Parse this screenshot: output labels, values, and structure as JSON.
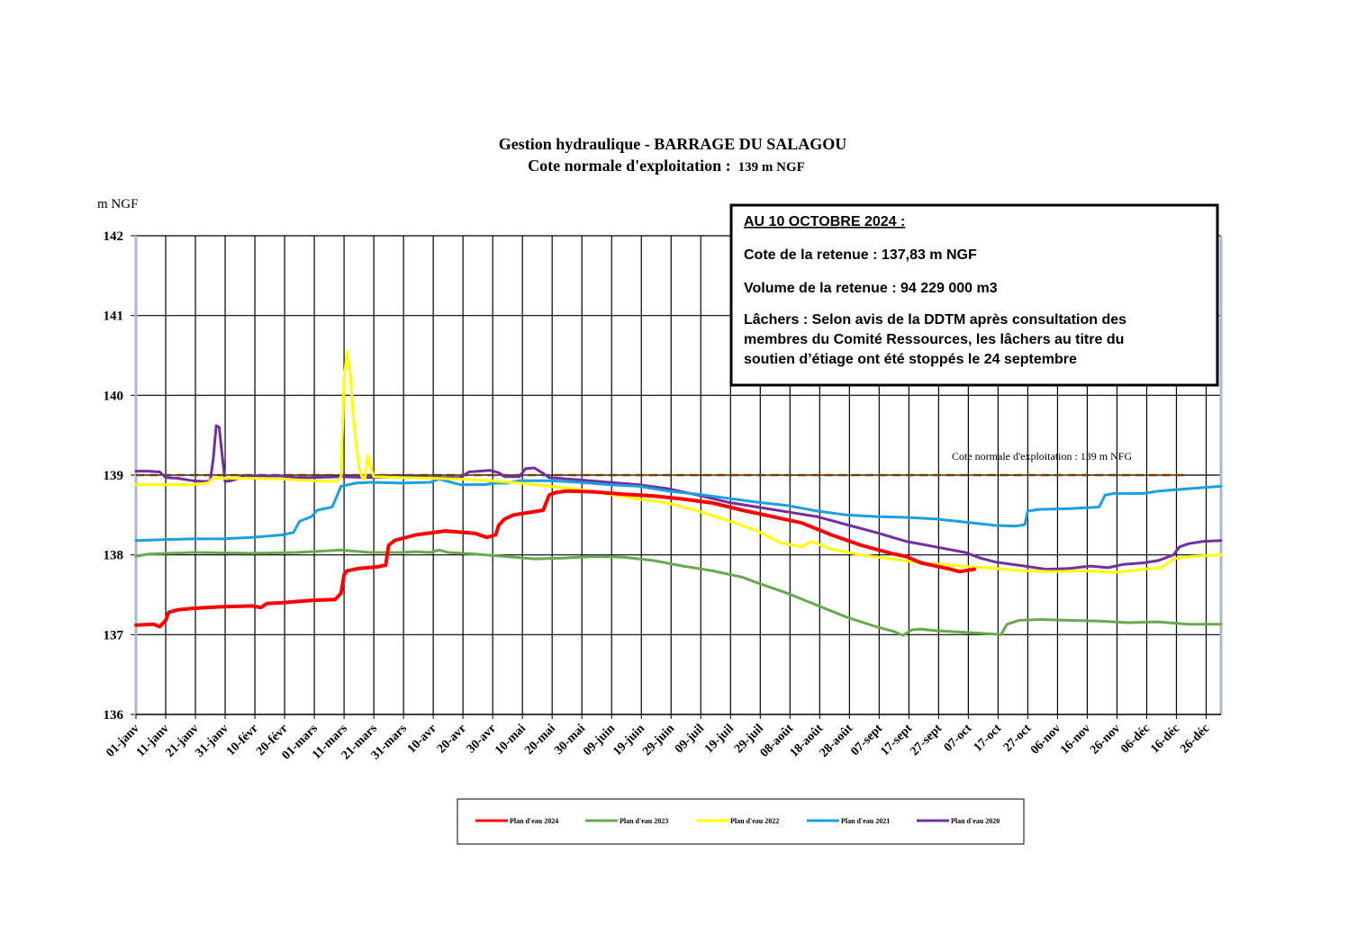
{
  "chart_data": {
    "type": "line",
    "title": "Gestion hydraulique - BARRAGE DU SALAGOU",
    "subtitle_main": "Cote normale d'exploitation :",
    "subtitle_value": "139 m NGF",
    "ylabel": "m NGF",
    "ylim": [
      136,
      142
    ],
    "yticks": [
      "136",
      "137",
      "138",
      "139",
      "140",
      "141",
      "142"
    ],
    "xlim": [
      1,
      366
    ],
    "xticks": [
      {
        "day": 1,
        "label": "01-janv"
      },
      {
        "day": 11,
        "label": "11-janv"
      },
      {
        "day": 21,
        "label": "21-janv"
      },
      {
        "day": 31,
        "label": "31-janv"
      },
      {
        "day": 41,
        "label": "10-févr"
      },
      {
        "day": 51,
        "label": "20-févr"
      },
      {
        "day": 61,
        "label": "01-mars"
      },
      {
        "day": 71,
        "label": "11-mars"
      },
      {
        "day": 81,
        "label": "21-mars"
      },
      {
        "day": 91,
        "label": "31-mars"
      },
      {
        "day": 101,
        "label": "10-avr"
      },
      {
        "day": 111,
        "label": "20-avr"
      },
      {
        "day": 121,
        "label": "30-avr"
      },
      {
        "day": 131,
        "label": "10-mai"
      },
      {
        "day": 141,
        "label": "20-mai"
      },
      {
        "day": 151,
        "label": "30-mai"
      },
      {
        "day": 161,
        "label": "09-juin"
      },
      {
        "day": 171,
        "label": "19-juin"
      },
      {
        "day": 181,
        "label": "29-juin"
      },
      {
        "day": 191,
        "label": "09-juil"
      },
      {
        "day": 201,
        "label": "19-juil"
      },
      {
        "day": 211,
        "label": "29-juil"
      },
      {
        "day": 221,
        "label": "08-août"
      },
      {
        "day": 231,
        "label": "18-août"
      },
      {
        "day": 241,
        "label": "28-août"
      },
      {
        "day": 251,
        "label": "07-sept"
      },
      {
        "day": 261,
        "label": "17-sept"
      },
      {
        "day": 271,
        "label": "27-sept"
      },
      {
        "day": 281,
        "label": "07-oct"
      },
      {
        "day": 291,
        "label": "17-oct"
      },
      {
        "day": 301,
        "label": "27-oct"
      },
      {
        "day": 311,
        "label": "06-nov"
      },
      {
        "day": 321,
        "label": "16-nov"
      },
      {
        "day": 331,
        "label": "26-nov"
      },
      {
        "day": 341,
        "label": "06-déc"
      },
      {
        "day": 351,
        "label": "16-déc"
      },
      {
        "day": 361,
        "label": "26-déc"
      }
    ],
    "grid": true,
    "legend_position": "bottom",
    "reference_line": {
      "value": 139,
      "label": "Cote normale d'exploitation : 139 m NFG",
      "color": "#7a3d00",
      "x_end": 355
    },
    "series": [
      {
        "name": "Plan d'eau 2024",
        "color": "#ff0000",
        "width": 4,
        "points": [
          [
            1,
            137.12
          ],
          [
            7,
            137.13
          ],
          [
            9,
            137.1
          ],
          [
            11,
            137.18
          ],
          [
            12,
            137.28
          ],
          [
            15,
            137.31
          ],
          [
            20,
            137.33
          ],
          [
            30,
            137.35
          ],
          [
            40,
            137.36
          ],
          [
            43,
            137.34
          ],
          [
            45,
            137.39
          ],
          [
            50,
            137.4
          ],
          [
            60,
            137.43
          ],
          [
            68,
            137.44
          ],
          [
            70,
            137.52
          ],
          [
            71,
            137.75
          ],
          [
            72,
            137.8
          ],
          [
            76,
            137.83
          ],
          [
            82,
            137.85
          ],
          [
            85,
            137.87
          ],
          [
            86,
            138.12
          ],
          [
            88,
            138.18
          ],
          [
            95,
            138.25
          ],
          [
            105,
            138.3
          ],
          [
            115,
            138.27
          ],
          [
            119,
            138.22
          ],
          [
            122,
            138.25
          ],
          [
            123,
            138.37
          ],
          [
            125,
            138.45
          ],
          [
            128,
            138.5
          ],
          [
            138,
            138.56
          ],
          [
            140,
            138.75
          ],
          [
            142,
            138.78
          ],
          [
            146,
            138.8
          ],
          [
            155,
            138.79
          ],
          [
            165,
            138.76
          ],
          [
            175,
            138.74
          ],
          [
            185,
            138.7
          ],
          [
            195,
            138.65
          ],
          [
            205,
            138.56
          ],
          [
            215,
            138.48
          ],
          [
            225,
            138.4
          ],
          [
            235,
            138.25
          ],
          [
            245,
            138.12
          ],
          [
            255,
            138.02
          ],
          [
            260,
            137.98
          ],
          [
            265,
            137.9
          ],
          [
            270,
            137.86
          ],
          [
            275,
            137.82
          ],
          [
            278,
            137.79
          ],
          [
            283,
            137.82
          ]
        ]
      },
      {
        "name": "Plan d'eau 2023",
        "color": "#6aa84f",
        "width": 3,
        "points": [
          [
            1,
            137.98
          ],
          [
            5,
            138.01
          ],
          [
            20,
            138.03
          ],
          [
            40,
            138.02
          ],
          [
            55,
            138.03
          ],
          [
            60,
            138.04
          ],
          [
            70,
            138.06
          ],
          [
            80,
            138.03
          ],
          [
            90,
            138.03
          ],
          [
            95,
            138.04
          ],
          [
            100,
            138.03
          ],
          [
            103,
            138.06
          ],
          [
            106,
            138.03
          ],
          [
            115,
            138.01
          ],
          [
            125,
            137.98
          ],
          [
            135,
            137.95
          ],
          [
            145,
            137.96
          ],
          [
            155,
            137.98
          ],
          [
            165,
            137.97
          ],
          [
            175,
            137.93
          ],
          [
            185,
            137.86
          ],
          [
            195,
            137.8
          ],
          [
            205,
            137.72
          ],
          [
            210,
            137.65
          ],
          [
            220,
            137.52
          ],
          [
            230,
            137.37
          ],
          [
            240,
            137.22
          ],
          [
            250,
            137.1
          ],
          [
            256,
            137.04
          ],
          [
            259,
            136.99
          ],
          [
            262,
            137.06
          ],
          [
            265,
            137.07
          ],
          [
            270,
            137.05
          ],
          [
            280,
            137.03
          ],
          [
            288,
            137.01
          ],
          [
            292,
            137.0
          ],
          [
            294,
            137.13
          ],
          [
            298,
            137.18
          ],
          [
            305,
            137.19
          ],
          [
            315,
            137.18
          ],
          [
            325,
            137.17
          ],
          [
            335,
            137.15
          ],
          [
            345,
            137.16
          ],
          [
            355,
            137.13
          ],
          [
            366,
            137.13
          ]
        ]
      },
      {
        "name": "Plan d'eau 2022",
        "color": "#ffff00",
        "width": 3,
        "points": [
          [
            1,
            138.88
          ],
          [
            10,
            138.88
          ],
          [
            20,
            138.88
          ],
          [
            25,
            138.9
          ],
          [
            27,
            138.96
          ],
          [
            30,
            138.96
          ],
          [
            40,
            138.96
          ],
          [
            50,
            138.95
          ],
          [
            60,
            138.93
          ],
          [
            68,
            138.92
          ],
          [
            70,
            138.97
          ],
          [
            71,
            140.2
          ],
          [
            72,
            140.55
          ],
          [
            73,
            140.3
          ],
          [
            74,
            139.8
          ],
          [
            75,
            139.4
          ],
          [
            76,
            139.1
          ],
          [
            77,
            138.98
          ],
          [
            78,
            138.95
          ],
          [
            79,
            139.25
          ],
          [
            80,
            139.1
          ],
          [
            81,
            138.98
          ],
          [
            90,
            138.97
          ],
          [
            100,
            138.96
          ],
          [
            110,
            138.95
          ],
          [
            120,
            138.93
          ],
          [
            130,
            138.9
          ],
          [
            140,
            138.86
          ],
          [
            150,
            138.82
          ],
          [
            160,
            138.76
          ],
          [
            170,
            138.7
          ],
          [
            180,
            138.65
          ],
          [
            190,
            138.55
          ],
          [
            200,
            138.43
          ],
          [
            210,
            138.3
          ],
          [
            218,
            138.15
          ],
          [
            225,
            138.1
          ],
          [
            228,
            138.17
          ],
          [
            235,
            138.07
          ],
          [
            245,
            138.0
          ],
          [
            255,
            137.95
          ],
          [
            265,
            137.9
          ],
          [
            275,
            137.87
          ],
          [
            290,
            137.83
          ],
          [
            300,
            137.8
          ],
          [
            310,
            137.79
          ],
          [
            320,
            137.8
          ],
          [
            330,
            137.78
          ],
          [
            340,
            137.82
          ],
          [
            346,
            137.84
          ],
          [
            350,
            137.95
          ],
          [
            356,
            137.98
          ],
          [
            366,
            138.0
          ]
        ]
      },
      {
        "name": "Plan d'eau 2021",
        "color": "#1a9fe0",
        "width": 3,
        "points": [
          [
            1,
            138.18
          ],
          [
            10,
            138.19
          ],
          [
            20,
            138.2
          ],
          [
            30,
            138.2
          ],
          [
            40,
            138.22
          ],
          [
            50,
            138.25
          ],
          [
            54,
            138.28
          ],
          [
            56,
            138.42
          ],
          [
            60,
            138.48
          ],
          [
            62,
            138.56
          ],
          [
            67,
            138.6
          ],
          [
            70,
            138.86
          ],
          [
            75,
            138.9
          ],
          [
            80,
            138.91
          ],
          [
            90,
            138.9
          ],
          [
            100,
            138.91
          ],
          [
            103,
            138.95
          ],
          [
            106,
            138.92
          ],
          [
            110,
            138.88
          ],
          [
            118,
            138.88
          ],
          [
            122,
            138.9
          ],
          [
            126,
            138.9
          ],
          [
            130,
            138.93
          ],
          [
            140,
            138.93
          ],
          [
            150,
            138.91
          ],
          [
            160,
            138.88
          ],
          [
            170,
            138.86
          ],
          [
            180,
            138.8
          ],
          [
            190,
            138.76
          ],
          [
            200,
            138.71
          ],
          [
            210,
            138.66
          ],
          [
            220,
            138.62
          ],
          [
            230,
            138.55
          ],
          [
            240,
            138.5
          ],
          [
            250,
            138.48
          ],
          [
            260,
            138.47
          ],
          [
            270,
            138.45
          ],
          [
            280,
            138.41
          ],
          [
            290,
            138.37
          ],
          [
            297,
            138.36
          ],
          [
            300,
            138.38
          ],
          [
            301,
            138.55
          ],
          [
            305,
            138.57
          ],
          [
            315,
            138.58
          ],
          [
            325,
            138.6
          ],
          [
            327,
            138.75
          ],
          [
            330,
            138.77
          ],
          [
            340,
            138.77
          ],
          [
            345,
            138.8
          ],
          [
            355,
            138.83
          ],
          [
            366,
            138.86
          ]
        ]
      },
      {
        "name": "Plan d'eau 2020",
        "color": "#7030a0",
        "width": 3,
        "points": [
          [
            1,
            139.05
          ],
          [
            5,
            139.05
          ],
          [
            9,
            139.04
          ],
          [
            11,
            138.97
          ],
          [
            15,
            138.96
          ],
          [
            20,
            138.93
          ],
          [
            24,
            138.92
          ],
          [
            26,
            138.93
          ],
          [
            27,
            139.2
          ],
          [
            28,
            139.62
          ],
          [
            29,
            139.6
          ],
          [
            30,
            139.25
          ],
          [
            31,
            138.92
          ],
          [
            33,
            138.93
          ],
          [
            37,
            138.98
          ],
          [
            40,
            138.99
          ],
          [
            50,
            138.99
          ],
          [
            55,
            138.97
          ],
          [
            60,
            138.97
          ],
          [
            70,
            138.98
          ],
          [
            80,
            138.97
          ],
          [
            90,
            138.98
          ],
          [
            100,
            138.97
          ],
          [
            110,
            138.97
          ],
          [
            113,
            139.04
          ],
          [
            120,
            139.06
          ],
          [
            123,
            139.03
          ],
          [
            125,
            138.98
          ],
          [
            130,
            138.98
          ],
          [
            132,
            139.08
          ],
          [
            135,
            139.09
          ],
          [
            138,
            139.02
          ],
          [
            140,
            138.97
          ],
          [
            150,
            138.94
          ],
          [
            160,
            138.91
          ],
          [
            170,
            138.88
          ],
          [
            180,
            138.83
          ],
          [
            190,
            138.75
          ],
          [
            200,
            138.66
          ],
          [
            210,
            138.6
          ],
          [
            220,
            138.54
          ],
          [
            230,
            138.48
          ],
          [
            240,
            138.38
          ],
          [
            250,
            138.28
          ],
          [
            260,
            138.17
          ],
          [
            270,
            138.1
          ],
          [
            280,
            138.03
          ],
          [
            285,
            137.96
          ],
          [
            290,
            137.91
          ],
          [
            300,
            137.86
          ],
          [
            307,
            137.82
          ],
          [
            315,
            137.83
          ],
          [
            322,
            137.86
          ],
          [
            328,
            137.84
          ],
          [
            333,
            137.88
          ],
          [
            340,
            137.9
          ],
          [
            345,
            137.93
          ],
          [
            350,
            138.0
          ],
          [
            352,
            138.1
          ],
          [
            355,
            138.14
          ],
          [
            360,
            138.17
          ],
          [
            366,
            138.18
          ]
        ]
      }
    ]
  },
  "info_box": {
    "heading": "AU 10 OCTOBRE 2024 :",
    "line1": "Cote de la retenue : 137,83 m NGF",
    "line2": "Volume de la retenue : 94 229 000 m3",
    "line3a": "Lâchers : Selon avis de la DDTM après consultation des",
    "line3b": "membres du Comité Ressources, les lâchers au titre du",
    "line3c": "soutien d’étiage ont été stoppés le 24 septembre"
  }
}
